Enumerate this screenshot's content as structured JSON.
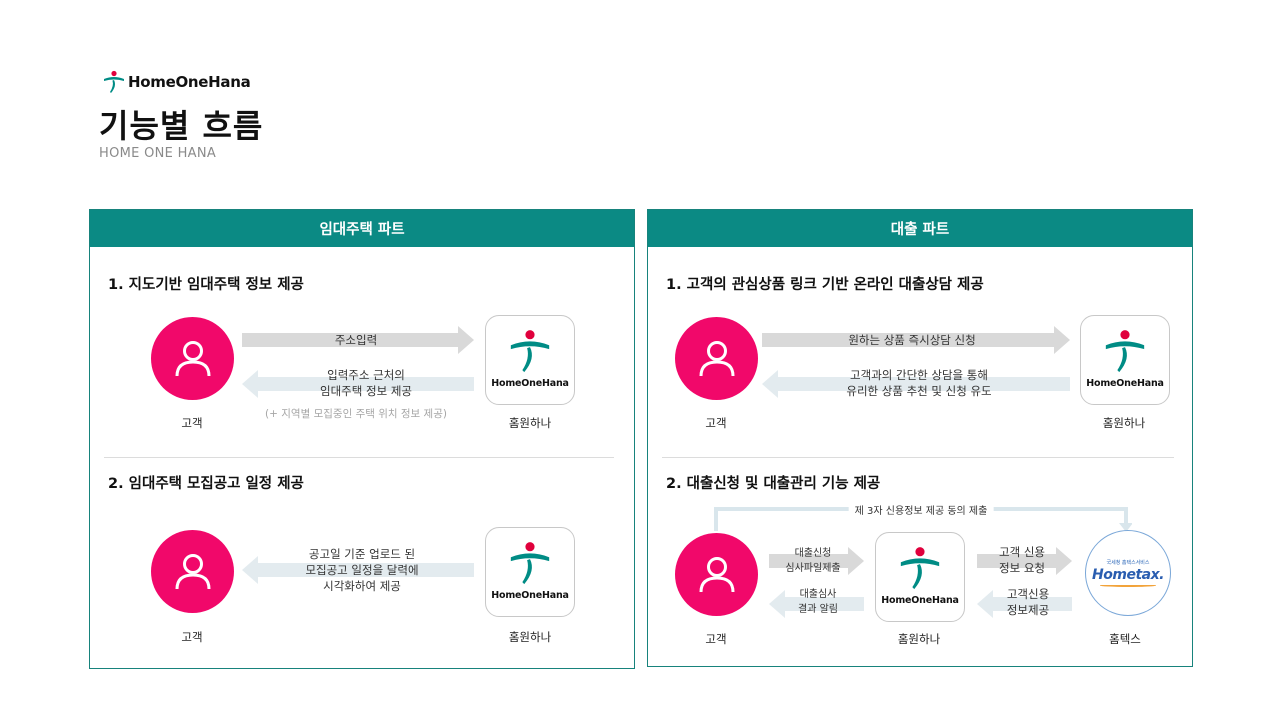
{
  "header": {
    "logo_text": "HomeOneHana",
    "title": "기능별 흐름",
    "subtitle": "HOME ONE HANA"
  },
  "colors": {
    "accent_teal": "#0b8a84",
    "accent_pink": "#f1086a",
    "arrow_forward": "#d9d9d9",
    "arrow_back": "#e3ebef",
    "hometax_blue": "#2a5db0"
  },
  "left_panel": {
    "header": "임대주택 파트",
    "section1": {
      "title": "1. 지도기반 임대주택 정보 제공",
      "customer_label": "고객",
      "app_label": "홈원하나",
      "app_name": "HomeOneHana",
      "forward_arrow": "주소입력",
      "back_arrow_line1": "입력주소 근처의",
      "back_arrow_line2": "임대주택 정보 제공",
      "note": "(+ 지역별 모집중인 주택 위치 정보 제공)"
    },
    "section2": {
      "title": "2. 임대주택 모집공고 일정 제공",
      "customer_label": "고객",
      "app_label": "홈원하나",
      "app_name": "HomeOneHana",
      "back_arrow_line1": "공고일 기준 업로드 된",
      "back_arrow_line2": "모집공고 일정을 달력에",
      "back_arrow_line3": "시각화하여  제공"
    }
  },
  "right_panel": {
    "header": "대출 파트",
    "section1": {
      "title": "1. 고객의 관심상품 링크 기반 온라인 대출상담 제공",
      "customer_label": "고객",
      "app_label": "홈원하나",
      "app_name": "HomeOneHana",
      "forward_arrow": "원하는 상품 즉시상담 신청",
      "back_arrow_line1": "고객과의 간단한 상담을 통해",
      "back_arrow_line2": "유리한 상품 추천 및 신청 유도"
    },
    "section2": {
      "title": "2. 대출신청 및 대출관리 기능 제공",
      "consent_label": "제 3자 신용정보 제공 동의 제출",
      "customer_label": "고객",
      "app_label": "홈원하나",
      "app_name": "HomeOneHana",
      "hometax_label": "홈텍스",
      "hometax_logo": "Hometax.",
      "hometax_sub": "국세청 홈택스서비스",
      "arrow1_line1": "대출신청",
      "arrow1_line2": "심사파일제출",
      "arrow2_line1": "대출심사",
      "arrow2_line2": "결과 알림",
      "arrow3_line1": "고객 신용",
      "arrow3_line2": "정보 요청",
      "arrow4_line1": "고객신용",
      "arrow4_line2": "정보제공"
    }
  }
}
